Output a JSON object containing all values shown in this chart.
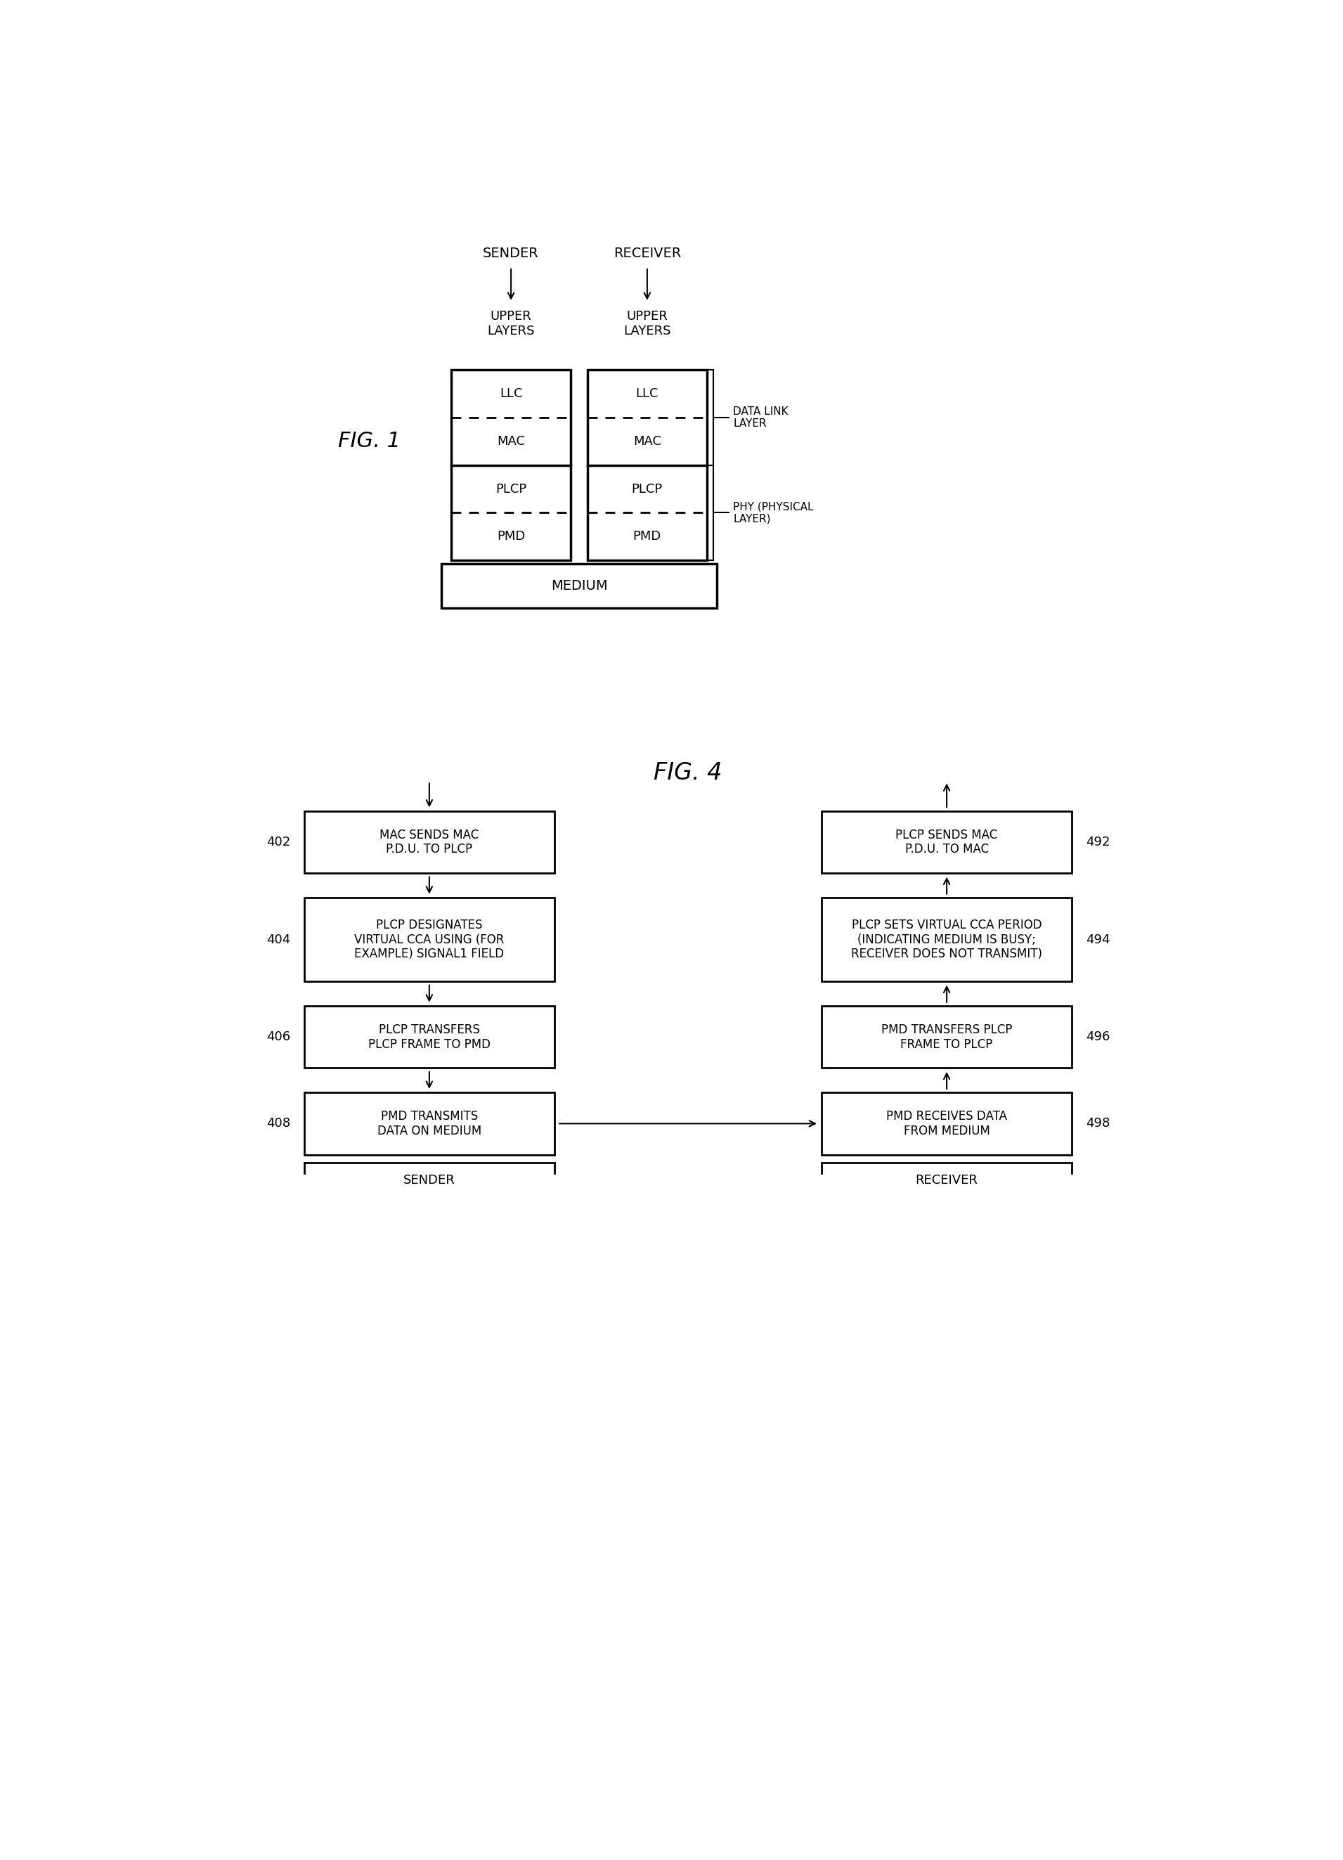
{
  "fig1": {
    "title": "FIG. 1",
    "sender_label": "SENDER",
    "receiver_label": "RECEIVER",
    "upper_layers_label": "UPPER\nLAYERS",
    "layers": [
      "LLC",
      "MAC",
      "PLCP",
      "PMD"
    ],
    "medium_label": "MEDIUM",
    "data_link_label": "DATA LINK\nLAYER",
    "phy_label": "PHY (PHYSICAL\nLAYER)"
  },
  "fig4": {
    "title": "FIG. 4",
    "sender_label": "SENDER",
    "receiver_label": "RECEIVER",
    "left_boxes": [
      {
        "id": "402",
        "text": "MAC SENDS MAC\nP.D.U. TO PLCP"
      },
      {
        "id": "404",
        "text": "PLCP DESIGNATES\nVIRTUAL CCA USING (FOR\nEXAMPLE) SIGNAL1 FIELD"
      },
      {
        "id": "406",
        "text": "PLCP TRANSFERS\nPLCP FRAME TO PMD"
      },
      {
        "id": "408",
        "text": "PMD TRANSMITS\nDATA ON MEDIUM"
      }
    ],
    "right_boxes": [
      {
        "id": "492",
        "text": "PLCP SENDS MAC\nP.D.U. TO MAC"
      },
      {
        "id": "494",
        "text": "PLCP SETS VIRTUAL CCA PERIOD\n(INDICATING MEDIUM IS BUSY;\nRECEIVER DOES NOT TRANSMIT)"
      },
      {
        "id": "496",
        "text": "PMD TRANSFERS PLCP\nFRAME TO PLCP"
      },
      {
        "id": "498",
        "text": "PMD RECEIVES DATA\nFROM MEDIUM"
      }
    ]
  }
}
